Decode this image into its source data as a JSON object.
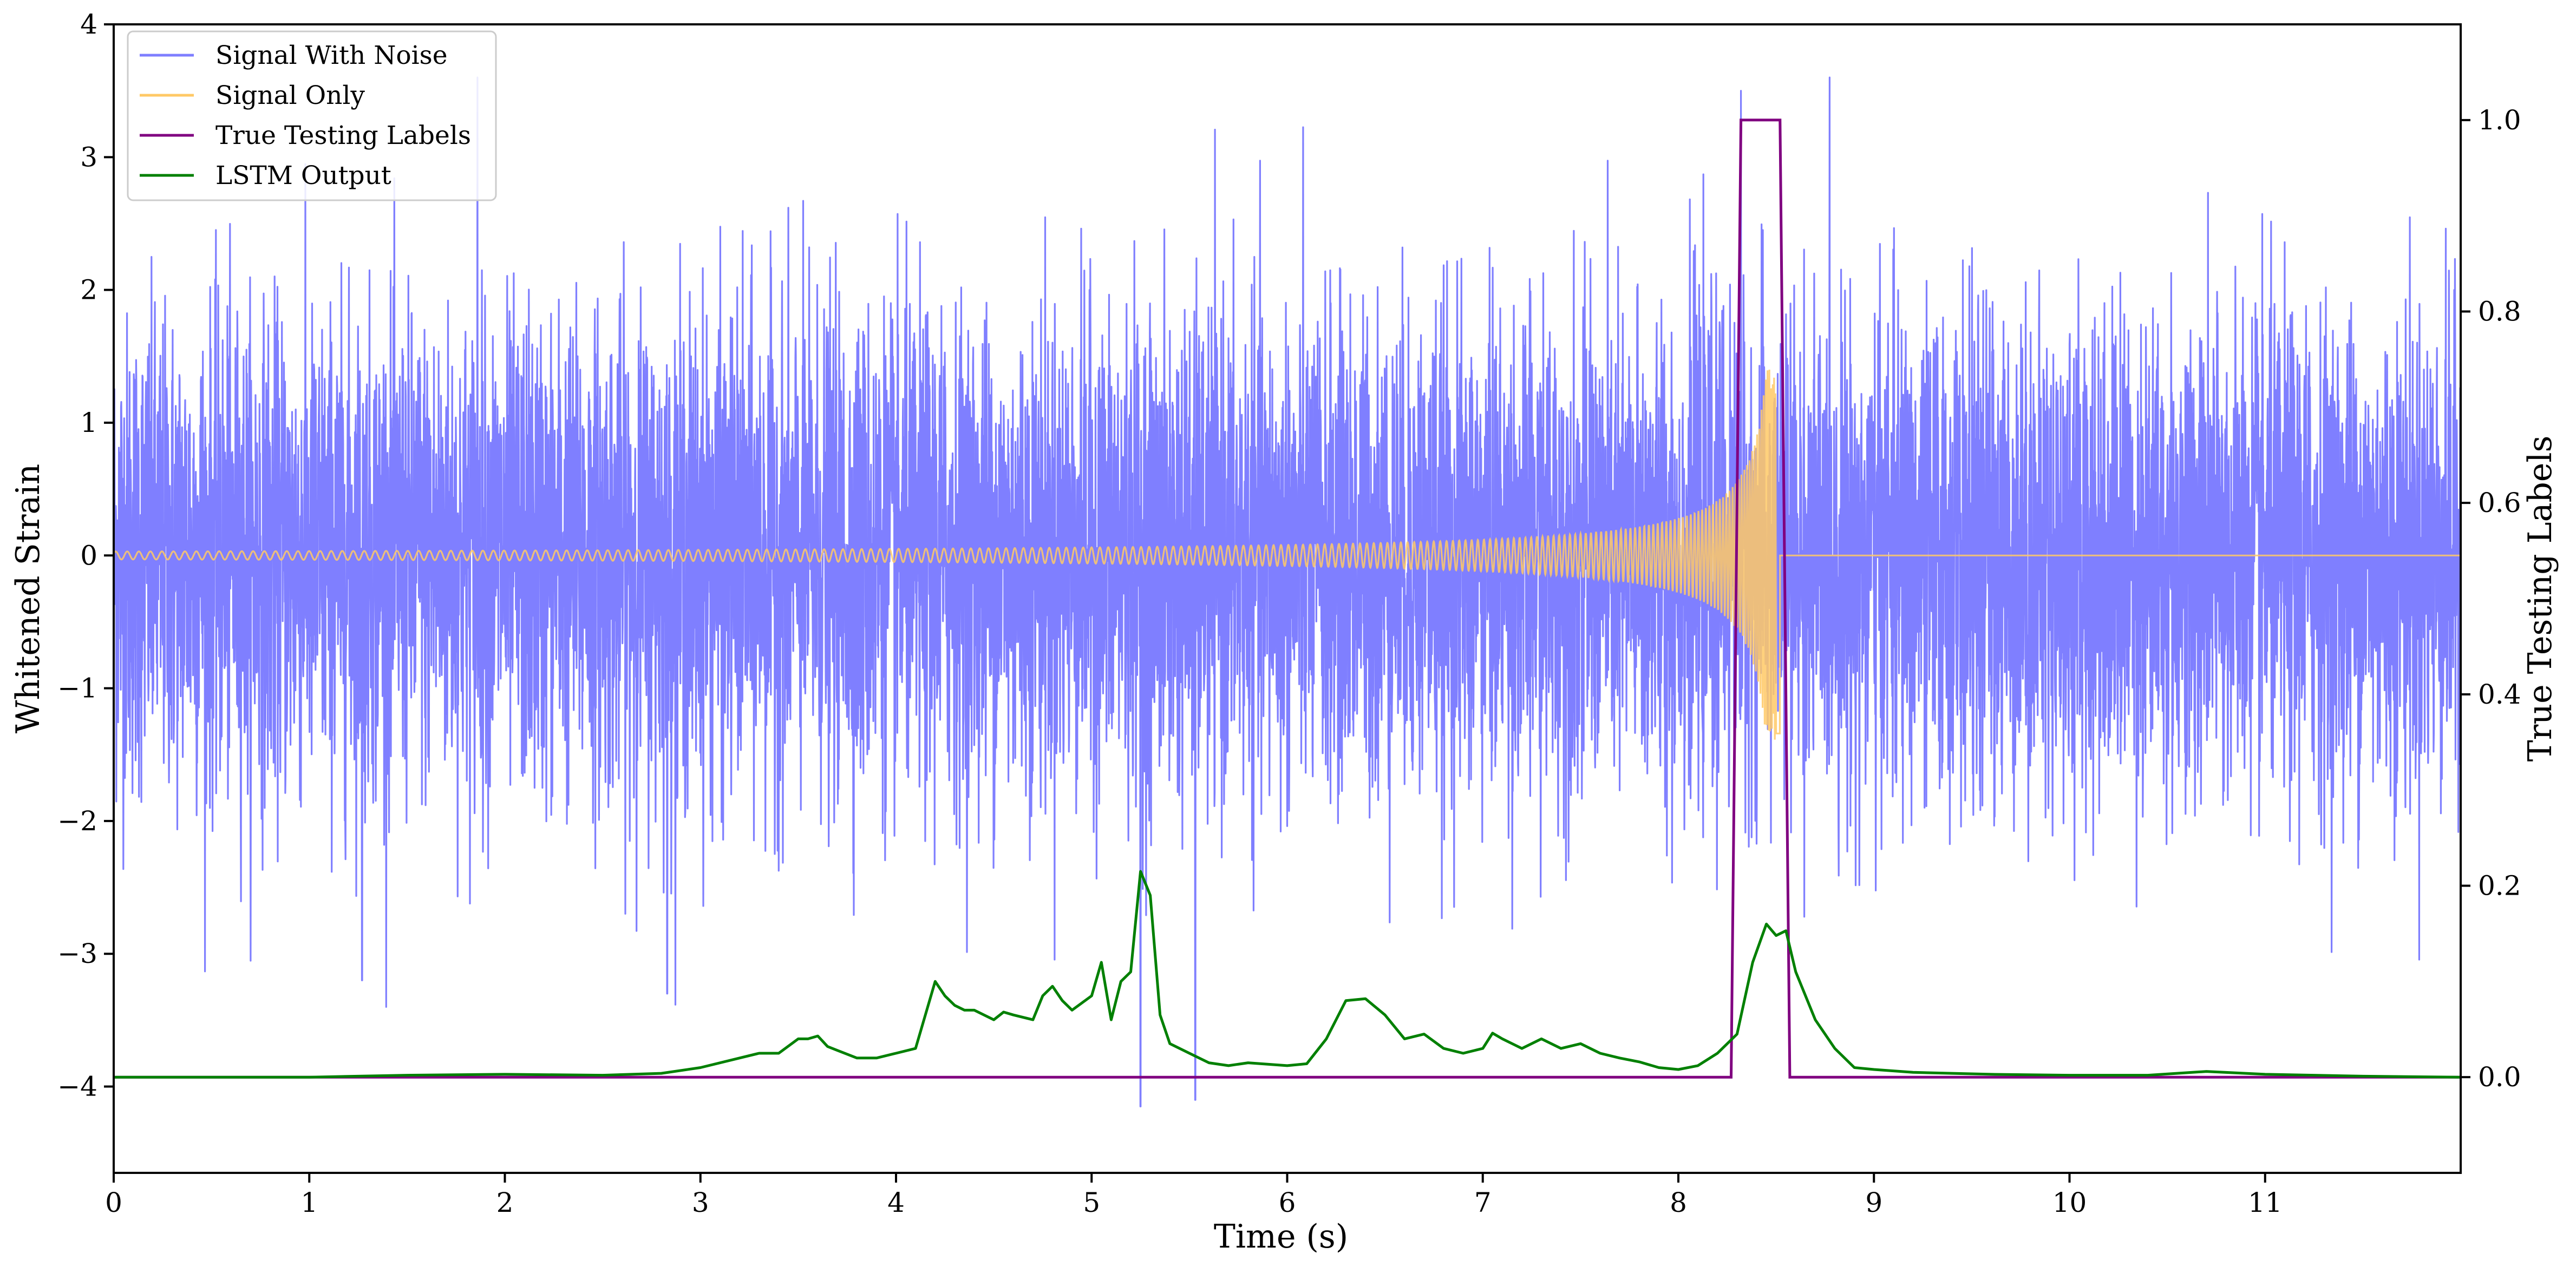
{
  "chart_data": {
    "type": "line",
    "xlabel": "Time (s)",
    "ylabel": "Whitened Strain",
    "y2label": "True Testing Labels",
    "xlim": [
      0,
      12
    ],
    "ylim": [
      -4.65,
      4.0
    ],
    "y2lim": [
      -0.1,
      1.1
    ],
    "xticks": [
      "0",
      "1",
      "2",
      "3",
      "4",
      "5",
      "6",
      "7",
      "8",
      "9",
      "10",
      "11"
    ],
    "yticks": [
      "4",
      "3",
      "2",
      "1",
      "0",
      "−1",
      "−2",
      "−3",
      "−4"
    ],
    "y2ticks": [
      "1.0",
      "0.8",
      "0.6",
      "0.4",
      "0.2",
      "0.0"
    ],
    "legend_position": "upper-left",
    "series": [
      {
        "name": "Signal With Noise",
        "axis": "left",
        "color": "#7f7fff",
        "noise_std": 0.9,
        "description_values": "random noise around 0, envelope roughly -3.2 to 3.6, occasional spikes to -4.15 near t=5.25 and t=5.55, 3.5 near t=8.3"
      },
      {
        "name": "Signal Only",
        "axis": "left",
        "color": "#ffc966",
        "chirp_start_amplitude": 0.03,
        "chirp_peak_time": 8.5,
        "chirp_peak_amplitude": 1.4,
        "chirp_end_time": 8.52
      },
      {
        "name": "True Testing Labels",
        "axis": "right",
        "color": "#800080",
        "x": [
          0,
          8.27,
          8.32,
          8.52,
          8.57,
          12
        ],
        "y": [
          0.0,
          0.0,
          1.0,
          1.0,
          0.0,
          0.0
        ]
      },
      {
        "name": "LSTM Output",
        "axis": "right",
        "color": "#008000",
        "x": [
          0,
          1,
          1.5,
          2.0,
          2.5,
          2.8,
          3.0,
          3.2,
          3.3,
          3.4,
          3.5,
          3.55,
          3.6,
          3.65,
          3.7,
          3.8,
          3.9,
          4.0,
          4.1,
          4.2,
          4.25,
          4.3,
          4.35,
          4.4,
          4.5,
          4.55,
          4.6,
          4.7,
          4.75,
          4.8,
          4.85,
          4.9,
          5.0,
          5.05,
          5.1,
          5.15,
          5.2,
          5.25,
          5.3,
          5.35,
          5.4,
          5.5,
          5.6,
          5.7,
          5.8,
          6.0,
          6.1,
          6.2,
          6.3,
          6.4,
          6.5,
          6.6,
          6.7,
          6.8,
          6.9,
          7.0,
          7.05,
          7.1,
          7.2,
          7.3,
          7.4,
          7.5,
          7.6,
          7.7,
          7.8,
          7.9,
          8.0,
          8.1,
          8.2,
          8.3,
          8.38,
          8.45,
          8.5,
          8.55,
          8.6,
          8.7,
          8.8,
          8.9,
          9.0,
          9.2,
          9.4,
          9.6,
          10.0,
          10.4,
          10.7,
          11.0,
          11.5,
          12.0
        ],
        "y": [
          0.0,
          0.0,
          0.002,
          0.003,
          0.002,
          0.004,
          0.01,
          0.02,
          0.025,
          0.025,
          0.04,
          0.04,
          0.043,
          0.032,
          0.028,
          0.02,
          0.02,
          0.025,
          0.03,
          0.1,
          0.085,
          0.075,
          0.07,
          0.07,
          0.06,
          0.068,
          0.065,
          0.06,
          0.085,
          0.095,
          0.08,
          0.07,
          0.085,
          0.12,
          0.06,
          0.1,
          0.11,
          0.215,
          0.19,
          0.065,
          0.035,
          0.025,
          0.015,
          0.012,
          0.015,
          0.012,
          0.014,
          0.04,
          0.08,
          0.082,
          0.065,
          0.04,
          0.045,
          0.03,
          0.025,
          0.03,
          0.046,
          0.04,
          0.03,
          0.04,
          0.03,
          0.035,
          0.025,
          0.02,
          0.016,
          0.01,
          0.008,
          0.012,
          0.025,
          0.045,
          0.12,
          0.16,
          0.148,
          0.153,
          0.11,
          0.06,
          0.03,
          0.01,
          0.008,
          0.005,
          0.004,
          0.003,
          0.002,
          0.002,
          0.006,
          0.003,
          0.001,
          0.0
        ]
      }
    ]
  }
}
